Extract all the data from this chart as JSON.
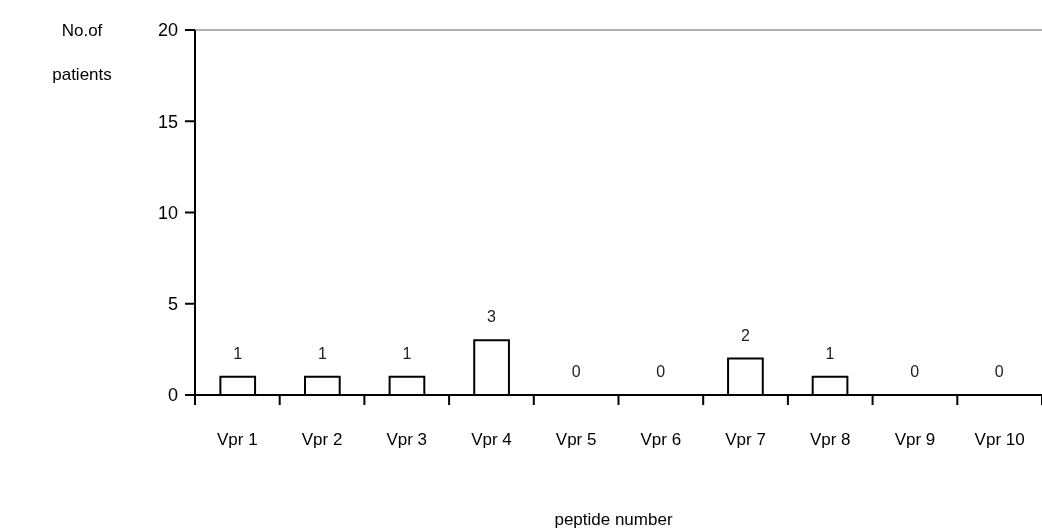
{
  "chart_data": {
    "type": "bar",
    "xlabel": "peptide number",
    "ylabel": "No.of patients",
    "categories": [
      "Vpr 1",
      "Vpr 2",
      "Vpr 3",
      "Vpr 4",
      "Vpr 5",
      "Vpr 6",
      "Vpr 7",
      "Vpr 8",
      "Vpr 9",
      "Vpr 10"
    ],
    "values": [
      1,
      1,
      1,
      3,
      0,
      0,
      2,
      1,
      0,
      0
    ],
    "color": "#ffffff",
    "ylim": [
      0,
      20
    ],
    "yticks": [
      0,
      5,
      10,
      15,
      20
    ],
    "data_labels": true,
    "grid": false
  }
}
